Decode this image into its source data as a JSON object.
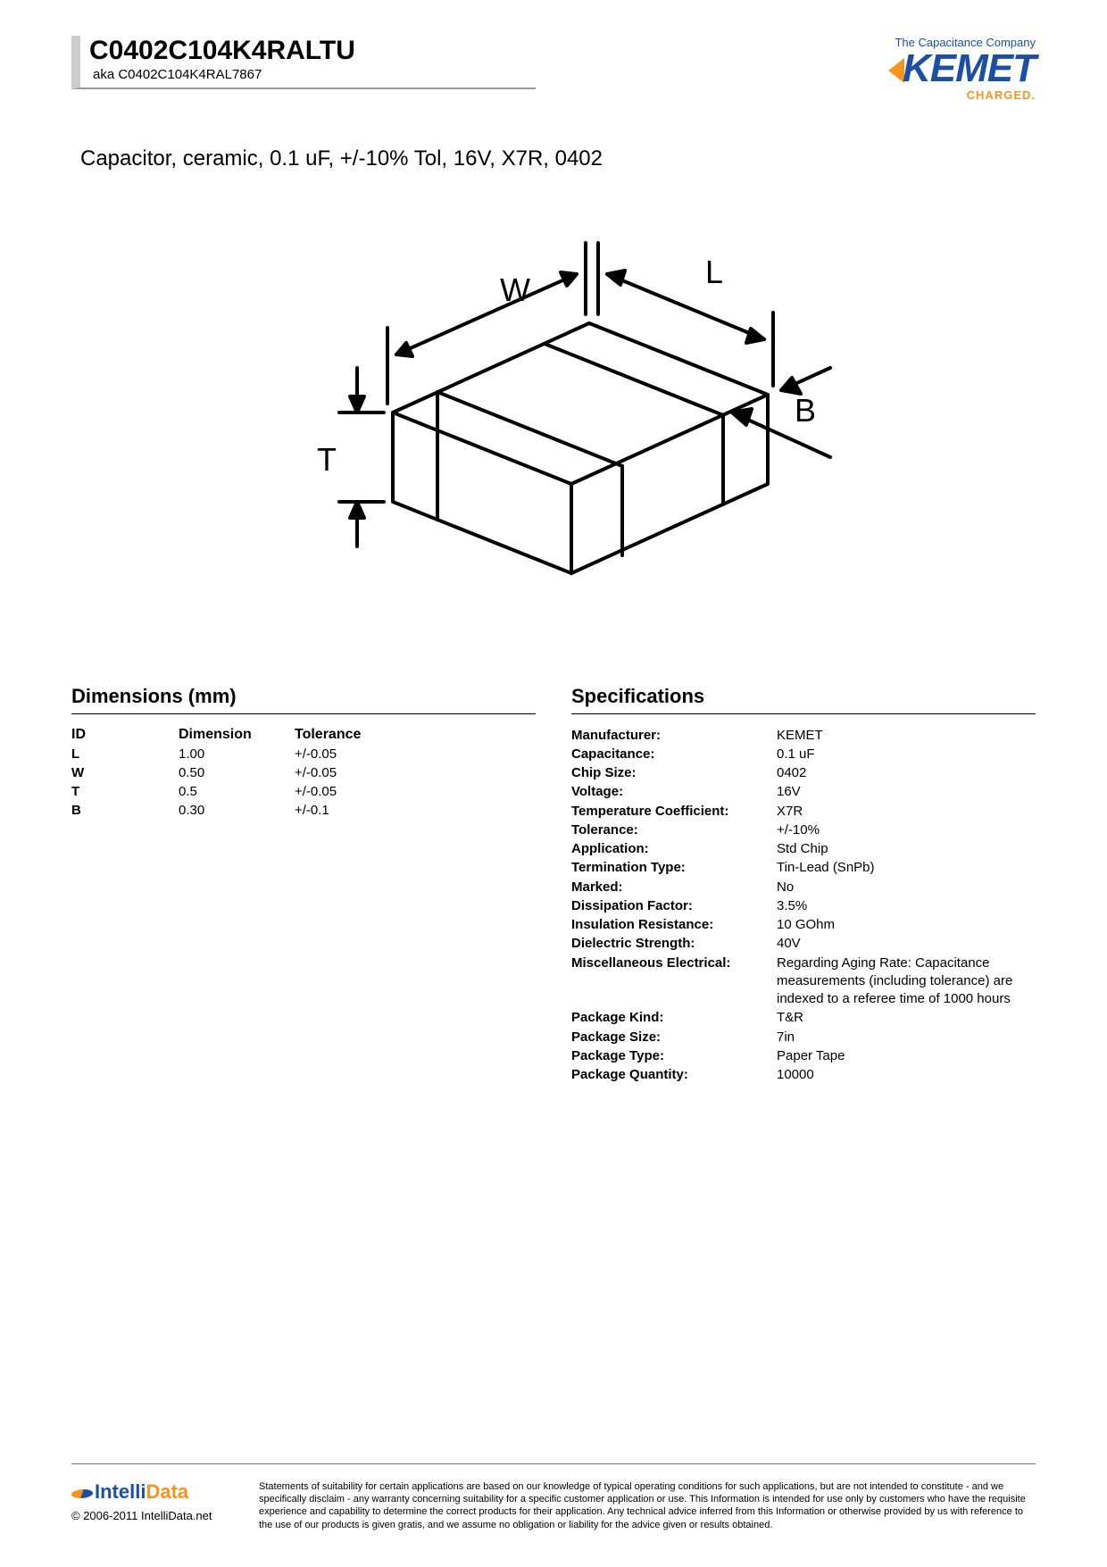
{
  "header": {
    "part_number": "C0402C104K4RALTU",
    "aka": "aka C0402C104K4RAL7867",
    "logo_tagline": "The Capacitance Company",
    "logo_text": "KEMET",
    "logo_charged": "CHARGED."
  },
  "description": "Capacitor, ceramic, 0.1 uF, +/-10% Tol, 16V, X7R, 0402",
  "diagram": {
    "labels": {
      "W": "W",
      "L": "L",
      "B": "B",
      "T": "T"
    },
    "stroke": "#000000",
    "stroke_width": 4,
    "label_fontsize": 36
  },
  "dimensions": {
    "title": "Dimensions (mm)",
    "columns": [
      "ID",
      "Dimension",
      "Tolerance"
    ],
    "rows": [
      {
        "id": "L",
        "dim": "1.00",
        "tol": "+/-0.05"
      },
      {
        "id": "W",
        "dim": "0.50",
        "tol": "+/-0.05"
      },
      {
        "id": "T",
        "dim": "0.5",
        "tol": "+/-0.05"
      },
      {
        "id": "B",
        "dim": "0.30",
        "tol": "+/-0.1"
      }
    ]
  },
  "specs": {
    "title": "Specifications",
    "rows": [
      {
        "label": "Manufacturer:",
        "value": "KEMET"
      },
      {
        "label": "Capacitance:",
        "value": "0.1 uF"
      },
      {
        "label": "Chip Size:",
        "value": "0402"
      },
      {
        "label": "Voltage:",
        "value": "16V"
      },
      {
        "label": "Temperature Coefficient:",
        "value": "X7R"
      },
      {
        "label": "Tolerance:",
        "value": "+/-10%"
      },
      {
        "label": "Application:",
        "value": "Std Chip"
      },
      {
        "label": "Termination Type:",
        "value": "Tin-Lead (SnPb)"
      },
      {
        "label": "Marked:",
        "value": "No"
      },
      {
        "label": "Dissipation Factor:",
        "value": "3.5%"
      },
      {
        "label": "Insulation Resistance:",
        "value": "10 GOhm"
      },
      {
        "label": "Dielectric Strength:",
        "value": "40V"
      },
      {
        "label": "Miscellaneous Electrical:",
        "value": "Regarding Aging Rate: Capacitance measurements (including tolerance) are indexed to a referee time of 1000 hours"
      },
      {
        "label": "Package Kind:",
        "value": "T&R"
      },
      {
        "label": "Package Size:",
        "value": "7in"
      },
      {
        "label": "Package Type:",
        "value": "Paper Tape"
      },
      {
        "label": "Package Quantity:",
        "value": "10000"
      }
    ]
  },
  "footer": {
    "brand": "IntelliData",
    "copyright": "© 2006-2011 IntelliData.net",
    "disclaimer": "Statements of suitability for certain applications are based on our knowledge of typical operating conditions for such applications, but are not intended to constitute - and we specifically disclaim - any warranty concerning suitability for a specific customer application or use. This Information is intended for use only by customers who have the requisite experience and capability to determine the correct products for their application. Any technical advice inferred from this Information or otherwise provided by us with reference to the use of our products is given gratis, and we assume no obligation or liability for the advice given or results obtained."
  },
  "colors": {
    "brand_blue": "#1a4fa3",
    "brand_orange": "#f7941d",
    "rule_grey": "#cccccc",
    "text": "#000000"
  }
}
